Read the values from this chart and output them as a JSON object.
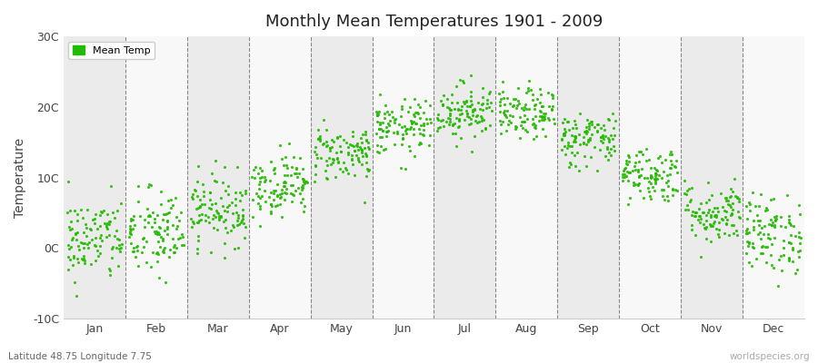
{
  "title": "Monthly Mean Temperatures 1901 - 2009",
  "ylabel": "Temperature",
  "bottom_left_label": "Latitude 48.75 Longitude 7.75",
  "bottom_right_label": "worldspecies.org",
  "legend_label": "Mean Temp",
  "dot_color": "#22bb00",
  "background_color": "#ffffff",
  "band_color_odd": "#ebebeb",
  "band_color_even": "#f8f8f8",
  "ylim": [
    -10,
    30
  ],
  "yticks": [
    -10,
    0,
    10,
    20,
    30
  ],
  "ytick_labels": [
    "-10C",
    "0C",
    "10C",
    "20C",
    "30C"
  ],
  "months": [
    "Jan",
    "Feb",
    "Mar",
    "Apr",
    "May",
    "Jun",
    "Jul",
    "Aug",
    "Sep",
    "Oct",
    "Nov",
    "Dec"
  ],
  "monthly_means": [
    1.2,
    2.0,
    5.5,
    9.0,
    13.5,
    17.0,
    19.5,
    19.0,
    15.5,
    10.5,
    5.0,
    2.0
  ],
  "monthly_stds": [
    3.0,
    3.2,
    2.5,
    2.2,
    2.0,
    2.0,
    2.0,
    1.8,
    2.0,
    2.0,
    2.2,
    2.8
  ],
  "n_years": 109,
  "seed": 42
}
